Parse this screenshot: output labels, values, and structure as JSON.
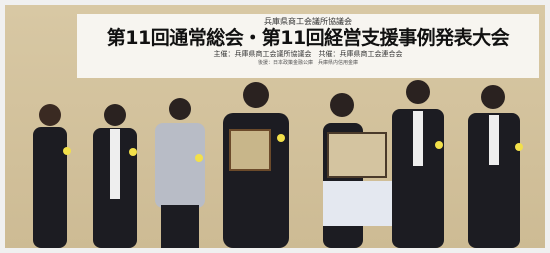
{
  "banner": {
    "top": "兵庫県商工会議所協議会",
    "title": "第11回通常総会・第11回経営支援事例発表大会",
    "organizers": "主催：兵庫県商工会議所協議会　共催：兵庫県商工会連合会",
    "sponsors": "後援：日本政策金融公庫　兵庫県内信用金庫"
  }
}
